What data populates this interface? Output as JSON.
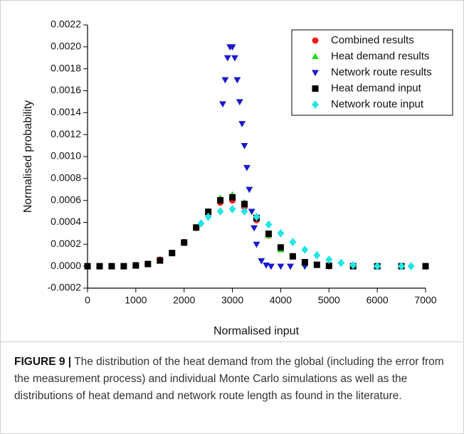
{
  "chart_data": {
    "type": "scatter",
    "xlabel": "Normalised input",
    "ylabel": "Normalised probability",
    "xlim": [
      0,
      7000
    ],
    "xticks": [
      0,
      1000,
      2000,
      3000,
      4000,
      5000,
      6000,
      7000
    ],
    "ylim": [
      -0.0002,
      0.0022
    ],
    "yticks": [
      -0.0002,
      {
        "value": 0,
        "label": "0.0000"
      },
      0.0002,
      0.0004,
      0.0006,
      0.0008,
      {
        "value": 0.001,
        "label": "0.0010"
      },
      0.0012,
      0.0014,
      0.0016,
      0.0018,
      {
        "value": 0.002,
        "label": "0.0020"
      },
      0.0022
    ],
    "legend": "upper right",
    "series": [
      {
        "name": "Combined results",
        "color": "#ff1a1a",
        "marker": "circle",
        "x": [
          0,
          500,
          1000,
          1500,
          2000,
          2250,
          2500,
          2750,
          3000,
          3250,
          3500,
          3750,
          4000,
          4500,
          5000,
          5500,
          6000,
          6500,
          7000
        ],
        "values": [
          0,
          0,
          1e-05,
          6e-05,
          0.00022,
          0.00035,
          0.00048,
          0.00058,
          0.0006,
          0.00054,
          0.00042,
          0.00028,
          0.00016,
          3e-05,
          0,
          0,
          0,
          0,
          0
        ]
      },
      {
        "name": "Heat demand results",
        "color": "#22dd22",
        "marker": "triangle-up",
        "x": [
          0,
          500,
          1000,
          1500,
          2000,
          2250,
          2500,
          2750,
          3000,
          3250,
          3500,
          3750,
          4000,
          4500,
          5000,
          5500,
          6000,
          6500,
          7000
        ],
        "values": [
          0,
          0,
          5e-06,
          5e-05,
          0.00021,
          0.00035,
          0.0005,
          0.00062,
          0.00065,
          0.00058,
          0.00044,
          0.00028,
          0.00015,
          2e-05,
          0,
          0,
          0,
          0,
          0
        ]
      },
      {
        "name": "Network route results",
        "color": "#1a1acc",
        "marker": "triangle-down",
        "x": [
          2800,
          2850,
          2900,
          2950,
          3000,
          3050,
          3100,
          3150,
          3200,
          3250,
          3300,
          3350,
          3400,
          3450,
          3500,
          3600,
          3700,
          3800,
          4000,
          4200,
          4500
        ],
        "values": [
          0.00148,
          0.0017,
          0.0019,
          0.002,
          0.002,
          0.0019,
          0.0017,
          0.0015,
          0.0013,
          0.0011,
          0.0009,
          0.0007,
          0.0005,
          0.00035,
          0.0002,
          5e-05,
          1e-05,
          0,
          0,
          0,
          0
        ]
      },
      {
        "name": "Heat demand input",
        "color": "#000000",
        "marker": "square",
        "x": [
          0,
          250,
          500,
          750,
          1000,
          1250,
          1500,
          1750,
          2000,
          2250,
          2500,
          2750,
          3000,
          3250,
          3500,
          3750,
          4000,
          4250,
          4500,
          4750,
          5000,
          5500,
          6000,
          6500,
          7000
        ],
        "values": [
          0,
          0,
          0,
          0,
          7e-06,
          2e-05,
          5.2e-05,
          0.00012,
          0.000216,
          0.000353,
          0.000496,
          0.000601,
          0.000628,
          0.000567,
          0.00044,
          0.000296,
          0.000171,
          9e-05,
          3.7e-05,
          1.3e-05,
          4e-06,
          0,
          0,
          0,
          0
        ]
      },
      {
        "name": "Network route input",
        "color": "#22e5e5",
        "marker": "diamond",
        "x": [
          2350,
          2500,
          2750,
          3000,
          3250,
          3500,
          3750,
          4000,
          4250,
          4500,
          4750,
          5000,
          5250,
          5500,
          6000,
          6500,
          6700
        ],
        "values": [
          0.00039,
          0.00045,
          0.0005,
          0.00052,
          0.0005,
          0.00045,
          0.00038,
          0.0003,
          0.00022,
          0.00015,
          0.0001,
          6e-05,
          3e-05,
          1e-05,
          0,
          0,
          0
        ]
      }
    ]
  },
  "caption": {
    "label": "FIGURE 9 |",
    "text": "The distribution of the heat demand from the global (including the error from the measurement process) and individual Monte Carlo simulations as well as the distributions of heat demand and network route length as found in the literature."
  }
}
